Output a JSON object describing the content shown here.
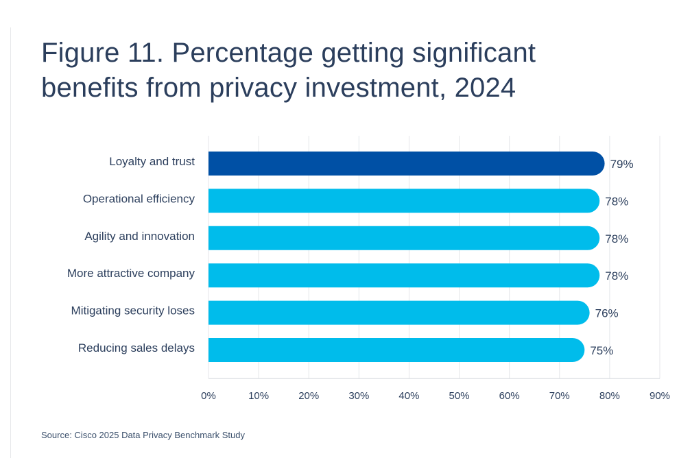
{
  "title_line1": "Figure 11. Percentage getting significant",
  "title_line2": "benefits from privacy investment, 2024",
  "source": "Source: Cisco 2025 Data Privacy Benchmark Study",
  "colors": {
    "highlight_bar": "#0050a5",
    "bar": "#00bceb",
    "text": "#2b3e5c",
    "grid": "#e4e6e9"
  },
  "chart_data": {
    "type": "bar",
    "orientation": "horizontal",
    "categories": [
      "Loyalty and trust",
      "Operational efficiency",
      "Agility and innovation",
      "More attractive company",
      "Mitigating security loses",
      "Reducing sales delays"
    ],
    "values": [
      79,
      78,
      78,
      78,
      76,
      75
    ],
    "value_labels": [
      "79%",
      "78%",
      "78%",
      "78%",
      "76%",
      "75%"
    ],
    "highlight_index": 0,
    "xlim": [
      0,
      90
    ],
    "xticks": [
      0,
      10,
      20,
      30,
      40,
      50,
      60,
      70,
      80,
      90
    ],
    "xtick_labels": [
      "0%",
      "10%",
      "20%",
      "30%",
      "40%",
      "50%",
      "60%",
      "70%",
      "80%",
      "90%"
    ],
    "grid": true
  }
}
